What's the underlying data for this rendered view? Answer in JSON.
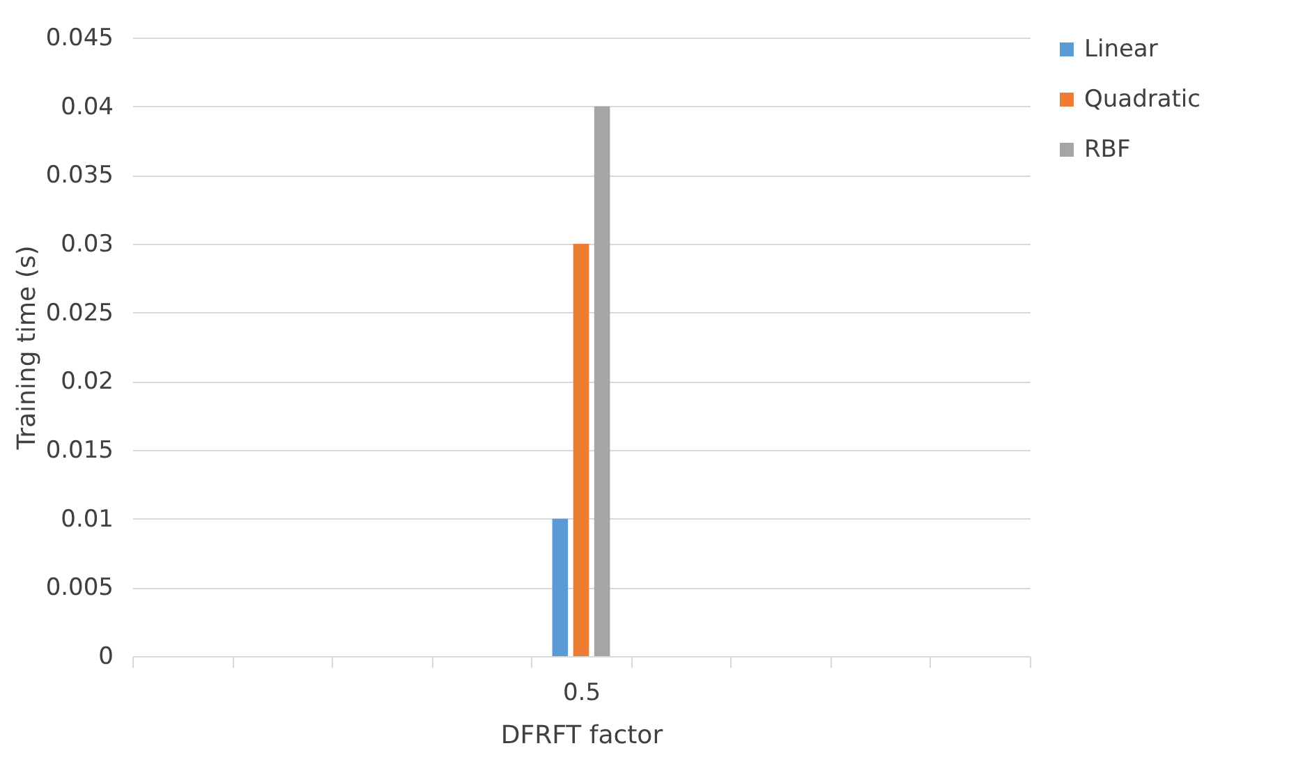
{
  "chart_data": {
    "type": "bar",
    "xlabel": "DFRFT factor",
    "ylabel": "Training time (s)",
    "categories": [
      null,
      null,
      null,
      null,
      "0.5",
      null,
      null,
      null,
      null
    ],
    "series": [
      {
        "name": "Linear",
        "color": "#5b9bd5",
        "values": [
          null,
          null,
          null,
          null,
          0.01,
          null,
          null,
          null,
          null
        ]
      },
      {
        "name": "Quadratic",
        "color": "#ed7d31",
        "values": [
          null,
          null,
          null,
          null,
          0.03,
          null,
          null,
          null,
          null
        ]
      },
      {
        "name": "RBF",
        "color": "#a5a5a5",
        "values": [
          null,
          null,
          null,
          null,
          0.04,
          null,
          null,
          null,
          null
        ]
      }
    ],
    "ylim": [
      0,
      0.045
    ],
    "yticks": [
      0,
      0.005,
      0.01,
      0.015,
      0.02,
      0.025,
      0.03,
      0.035,
      0.04,
      0.045
    ],
    "grid": "y",
    "legend": "right"
  }
}
